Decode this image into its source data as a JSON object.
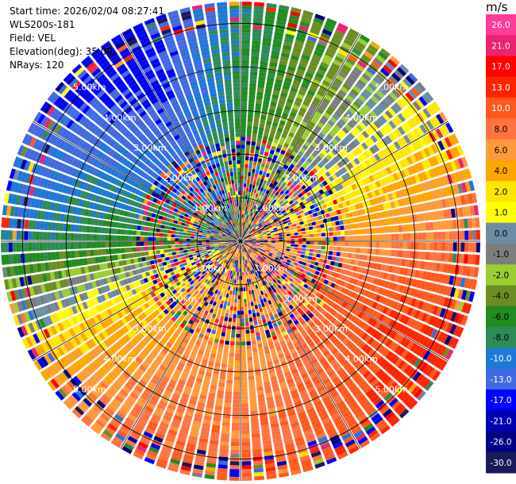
{
  "header": {
    "start_time": "Start time: 2026/02/04 08:27:41",
    "instrument": "WLS200s-181",
    "field": "Field: VEL",
    "elevation": "Elevation(deg): 35.00",
    "nrays": "NRays: 120"
  },
  "colorbar": {
    "unit": "m/s",
    "ticks": [
      "26.0",
      "21.0",
      "17.0",
      "13.0",
      "10.0",
      "8.0",
      "6.0",
      "4.0",
      "2.0",
      "1.0",
      "0.0",
      "-1.0",
      "-2.0",
      "-4.0",
      "-6.0",
      "-8.0",
      "-10.0",
      "-13.0",
      "-17.0",
      "-21.0",
      "-26.0",
      "-30.0"
    ],
    "colors": [
      "#ff3c9a",
      "#ee2272",
      "#ff0000",
      "#ff2400",
      "#ff5a1e",
      "#ff7340",
      "#ff9a3c",
      "#ffa500",
      "#ffe600",
      "#ffff00",
      "#6b8ea6",
      "#7d7d7d",
      "#9acd32",
      "#6b8e23",
      "#228b22",
      "#2e8b57",
      "#1e78d7",
      "#4169e1",
      "#0000ff",
      "#0000b4",
      "#000080",
      "#1a1a5a"
    ]
  },
  "chart_data": {
    "type": "ppi",
    "field": "VEL",
    "unit": "m/s",
    "rays": 120,
    "range_rings_km": [
      1,
      2,
      3,
      4,
      5
    ],
    "ring_labels": [
      "1.00km",
      "2.00km",
      "3.00km",
      "4.00km",
      "5.00km"
    ],
    "max_range_km": 5.5,
    "sector_velocity_ms": [
      {
        "azimuth_deg": 0,
        "value": -6
      },
      {
        "azimuth_deg": 30,
        "value": -2
      },
      {
        "azimuth_deg": 60,
        "value": 2
      },
      {
        "azimuth_deg": 90,
        "value": 8
      },
      {
        "azimuth_deg": 120,
        "value": 13
      },
      {
        "azimuth_deg": 150,
        "value": 10
      },
      {
        "azimuth_deg": 180,
        "value": 8
      },
      {
        "azimuth_deg": 210,
        "value": 8
      },
      {
        "azimuth_deg": 240,
        "value": 4
      },
      {
        "azimuth_deg": 270,
        "value": -6
      },
      {
        "azimuth_deg": 300,
        "value": -10
      },
      {
        "azimuth_deg": 330,
        "value": -13
      }
    ]
  }
}
